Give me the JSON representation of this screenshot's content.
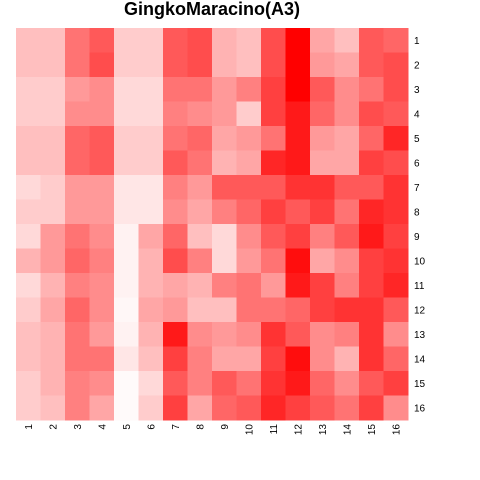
{
  "chart_data": {
    "type": "heatmap",
    "title": "GingkoMaracino(A3)",
    "x_labels": [
      "1",
      "2",
      "3",
      "4",
      "5",
      "6",
      "7",
      "8",
      "9",
      "10",
      "11",
      "12",
      "13",
      "14",
      "15",
      "16"
    ],
    "y_labels": [
      "1",
      "2",
      "3",
      "4",
      "5",
      "6",
      "7",
      "8",
      "9",
      "10",
      "11",
      "12",
      "13",
      "14",
      "15",
      "16"
    ],
    "color_low": "#ffffff",
    "color_high": "#ff0000",
    "value_range": [
      0,
      1
    ],
    "values": [
      [
        0.25,
        0.25,
        0.55,
        0.65,
        0.2,
        0.2,
        0.65,
        0.7,
        0.3,
        0.25,
        0.7,
        1.0,
        0.35,
        0.25,
        0.65,
        0.6
      ],
      [
        0.25,
        0.25,
        0.55,
        0.7,
        0.2,
        0.2,
        0.65,
        0.7,
        0.3,
        0.25,
        0.7,
        1.0,
        0.4,
        0.35,
        0.65,
        0.7
      ],
      [
        0.2,
        0.2,
        0.4,
        0.45,
        0.15,
        0.15,
        0.55,
        0.55,
        0.4,
        0.5,
        0.75,
        1.0,
        0.65,
        0.45,
        0.55,
        0.7
      ],
      [
        0.2,
        0.2,
        0.45,
        0.45,
        0.15,
        0.15,
        0.5,
        0.45,
        0.4,
        0.2,
        0.75,
        0.9,
        0.6,
        0.45,
        0.7,
        0.65
      ],
      [
        0.25,
        0.25,
        0.6,
        0.65,
        0.2,
        0.2,
        0.55,
        0.6,
        0.35,
        0.4,
        0.55,
        0.9,
        0.4,
        0.35,
        0.6,
        0.85
      ],
      [
        0.25,
        0.25,
        0.6,
        0.65,
        0.2,
        0.2,
        0.65,
        0.55,
        0.3,
        0.35,
        0.85,
        0.9,
        0.35,
        0.35,
        0.75,
        0.7
      ],
      [
        0.15,
        0.2,
        0.4,
        0.4,
        0.1,
        0.1,
        0.5,
        0.4,
        0.65,
        0.65,
        0.65,
        0.8,
        0.8,
        0.65,
        0.65,
        0.8
      ],
      [
        0.2,
        0.2,
        0.4,
        0.4,
        0.1,
        0.1,
        0.45,
        0.35,
        0.5,
        0.6,
        0.75,
        0.65,
        0.75,
        0.55,
        0.85,
        0.8
      ],
      [
        0.15,
        0.4,
        0.55,
        0.45,
        0.05,
        0.35,
        0.6,
        0.25,
        0.15,
        0.45,
        0.65,
        0.75,
        0.5,
        0.65,
        0.9,
        0.75
      ],
      [
        0.3,
        0.4,
        0.6,
        0.5,
        0.05,
        0.3,
        0.7,
        0.5,
        0.15,
        0.4,
        0.55,
        0.95,
        0.35,
        0.45,
        0.75,
        0.8
      ],
      [
        0.15,
        0.3,
        0.5,
        0.45,
        0.05,
        0.3,
        0.35,
        0.3,
        0.5,
        0.55,
        0.4,
        0.9,
        0.75,
        0.5,
        0.75,
        0.85
      ],
      [
        0.2,
        0.35,
        0.6,
        0.45,
        0.03,
        0.35,
        0.4,
        0.25,
        0.25,
        0.55,
        0.55,
        0.6,
        0.75,
        0.8,
        0.8,
        0.65
      ],
      [
        0.25,
        0.3,
        0.55,
        0.4,
        0.05,
        0.3,
        0.9,
        0.45,
        0.4,
        0.45,
        0.8,
        0.65,
        0.45,
        0.5,
        0.8,
        0.45
      ],
      [
        0.25,
        0.3,
        0.55,
        0.55,
        0.1,
        0.25,
        0.75,
        0.5,
        0.35,
        0.35,
        0.75,
        0.95,
        0.45,
        0.3,
        0.8,
        0.6
      ],
      [
        0.2,
        0.3,
        0.5,
        0.45,
        0.02,
        0.15,
        0.65,
        0.5,
        0.65,
        0.55,
        0.8,
        0.9,
        0.6,
        0.45,
        0.65,
        0.75
      ],
      [
        0.2,
        0.25,
        0.5,
        0.35,
        0.02,
        0.2,
        0.75,
        0.35,
        0.6,
        0.65,
        0.85,
        0.75,
        0.65,
        0.55,
        0.75,
        0.45
      ]
    ]
  }
}
